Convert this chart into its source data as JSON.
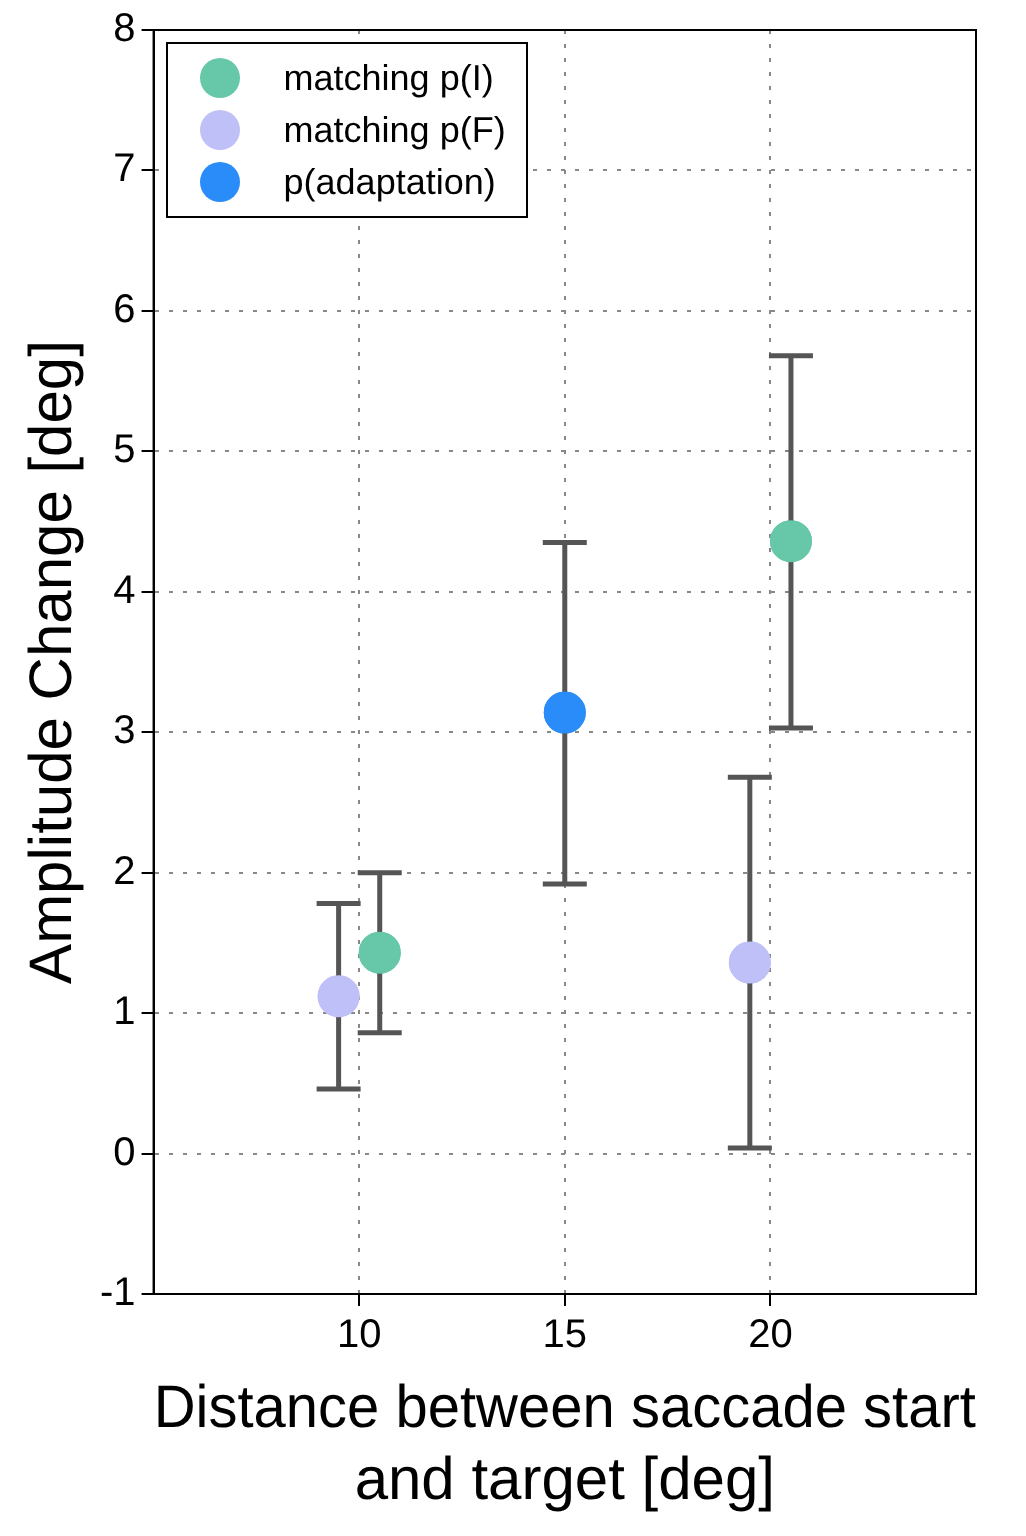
{
  "chart_data": {
    "type": "scatter",
    "xlabel": "Distance between saccade start and target [deg]",
    "ylabel": "Amplitude Change [deg]",
    "xlim": [
      5,
      25
    ],
    "xticks": [
      10,
      15,
      20
    ],
    "ylim": [
      -1,
      8
    ],
    "yticks": [
      -1,
      0,
      1,
      2,
      3,
      4,
      5,
      6,
      7,
      8
    ],
    "grid": true,
    "legend": "top left",
    "marker": "circle",
    "series": [
      {
        "name": "matching p(I)",
        "color": "#66c8a8",
        "x": [
          10.5,
          20.5
        ],
        "values": [
          1.43,
          4.36
        ],
        "errors": [
          [
            0.86,
            2.0
          ],
          [
            3.03,
            5.68
          ]
        ]
      },
      {
        "name": "matching p(F)",
        "color": "#c0c0f8",
        "x": [
          9.5,
          19.5
        ],
        "values": [
          1.12,
          1.36
        ],
        "errors": [
          [
            0.46,
            1.78
          ],
          [
            0.04,
            2.68
          ]
        ]
      },
      {
        "name": "p(adaptation)",
        "color": "#2a8cf8",
        "x": [
          15
        ],
        "values": [
          3.14
        ],
        "errors": [
          [
            1.92,
            4.35
          ]
        ]
      }
    ]
  }
}
